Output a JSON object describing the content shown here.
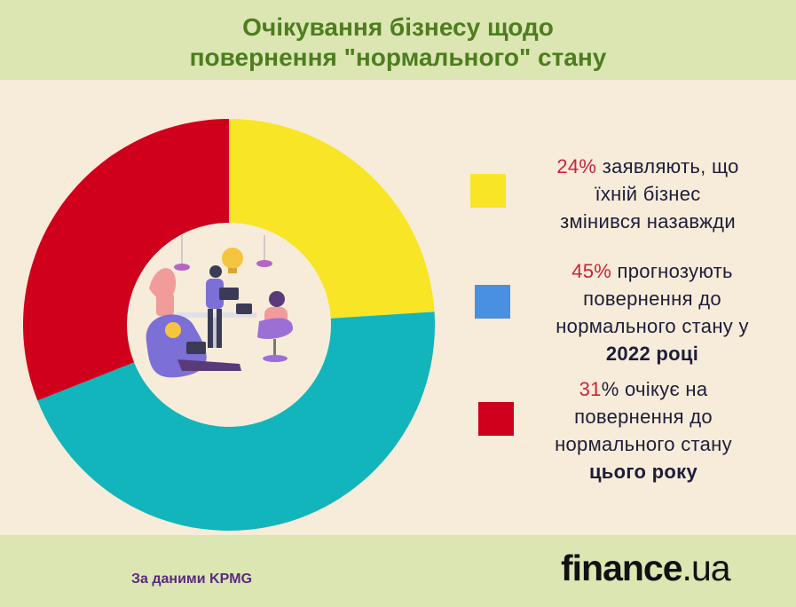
{
  "title_line1": "Очікування бізнесу щодо",
  "title_line2": "повернення \"нормального\" стану",
  "chart_data": {
    "type": "pie",
    "donut": true,
    "categories": [
      "заявляють, що їхній бізнес змінився назавжди",
      "прогнозують повернення до нормального стану у 2022 році",
      "очікує на повернення до нормального стану цього року"
    ],
    "values": [
      24,
      45,
      31
    ],
    "colors": [
      "#f7e526",
      "#12b5bb",
      "#d0001c"
    ],
    "legend_colors": [
      "#f7e526",
      "#4a90e2",
      "#d0001c"
    ]
  },
  "legend": [
    {
      "pct": "24%",
      "l1": " заявляють, що",
      "l2": "їхній бізнес",
      "l3": "змінився назавжди",
      "l4": ""
    },
    {
      "pct": "45%",
      "l1": " прогнозують",
      "l2": "повернення до",
      "l3": "нормального стану у",
      "l4": "2022 році"
    },
    {
      "pct": "31",
      "pct_rest": "% очікує на",
      "l2": "повернення до",
      "l3": "нормального стану",
      "l4": "цього року"
    }
  ],
  "source": "За даними KPMG",
  "brand_main": "finance",
  "brand_tld": ".ua"
}
